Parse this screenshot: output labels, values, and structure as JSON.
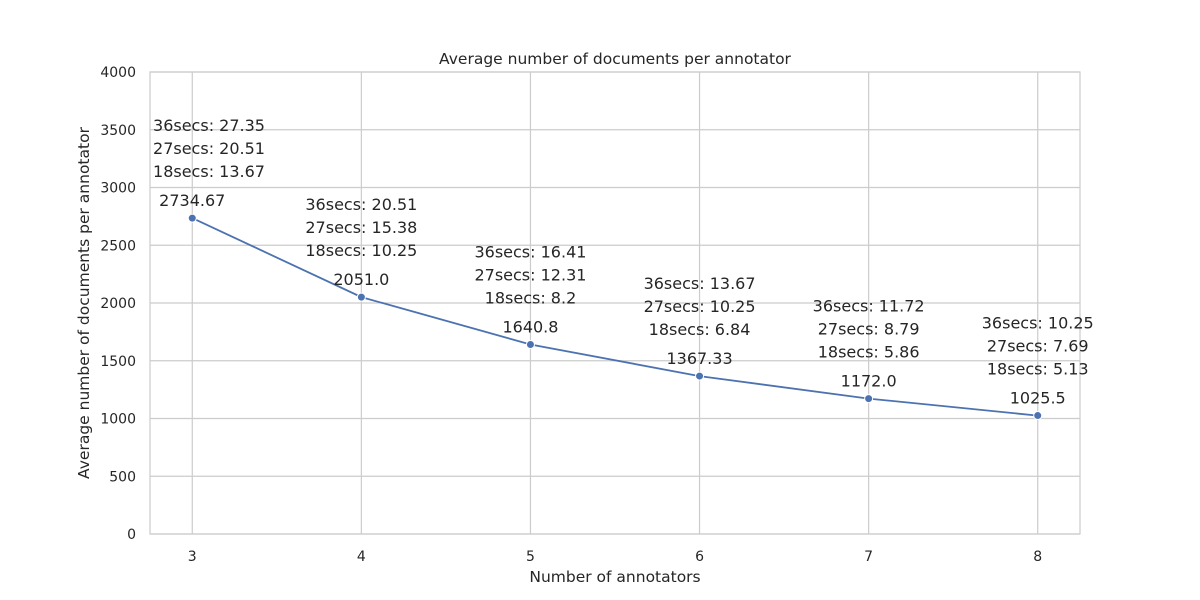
{
  "chart_data": {
    "type": "line",
    "title": "Average number of documents per annotator",
    "xlabel": "Number of annotators",
    "ylabel": "Average number of documents per annotator",
    "x": [
      3,
      4,
      5,
      6,
      7,
      8
    ],
    "x_tick_labels": [
      "3",
      "4",
      "5",
      "6",
      "7",
      "8"
    ],
    "y_ticks": [
      0,
      500,
      1000,
      1500,
      2000,
      2500,
      3000,
      3500,
      4000
    ],
    "y_tick_labels": [
      "0",
      "500",
      "1000",
      "1500",
      "2000",
      "2500",
      "3000",
      "3500",
      "4000"
    ],
    "ylim": [
      0,
      4000
    ],
    "xlim": [
      2.75,
      8.25
    ],
    "grid": true,
    "series": [
      {
        "name": "Average number of documents per annotator",
        "color": "#4c72b0",
        "values": [
          2734.67,
          2051.0,
          1640.8,
          1367.33,
          1172.0,
          1025.5
        ],
        "value_labels": [
          "2734.67",
          "2051.0",
          "1640.8",
          "1367.33",
          "1172.0",
          "1025.5"
        ]
      }
    ],
    "annotations": [
      [
        "36secs: 27.35",
        "27secs: 20.51",
        "18secs: 13.67"
      ],
      [
        "36secs: 20.51",
        "27secs: 15.38",
        "18secs: 10.25"
      ],
      [
        "36secs: 16.41",
        "27secs: 12.31",
        "18secs: 8.2"
      ],
      [
        "36secs: 13.67",
        "27secs: 10.25",
        "18secs: 6.84"
      ],
      [
        "36secs: 11.72",
        "27secs: 8.79",
        "18secs: 5.86"
      ],
      [
        "36secs: 10.25",
        "27secs: 7.69",
        "18secs: 5.13"
      ]
    ]
  }
}
